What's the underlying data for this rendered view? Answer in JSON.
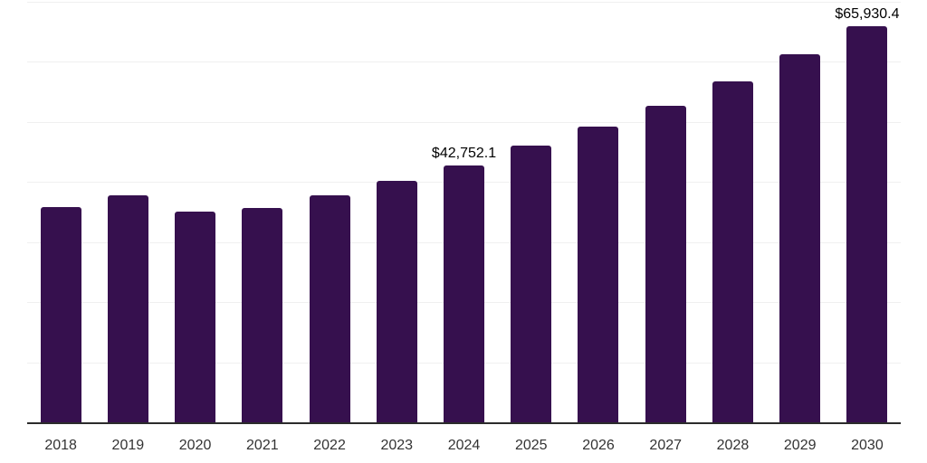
{
  "chart_data": {
    "type": "bar",
    "title": "",
    "xlabel": "",
    "ylabel": "",
    "categories": [
      "2018",
      "2019",
      "2020",
      "2021",
      "2022",
      "2023",
      "2024",
      "2025",
      "2026",
      "2027",
      "2028",
      "2029",
      "2030"
    ],
    "values": [
      35800,
      37800,
      35100,
      35700,
      37800,
      40200,
      42752.1,
      46000,
      49200,
      52700,
      56800,
      61300,
      65930.4
    ],
    "data_labels": [
      {
        "category": "2024",
        "text": "$42,752.1"
      },
      {
        "category": "2030",
        "text": "$65,930.4"
      }
    ],
    "ylim": [
      0,
      70000
    ],
    "gridline_values": [
      10000,
      20000,
      30000,
      40000,
      50000,
      60000,
      70000
    ],
    "grid": true,
    "legend": false,
    "y_axis_labels_shown": false
  },
  "style": {
    "bar_color": "#36104e",
    "axis_color": "#2b2b2b",
    "grid_color": "#f0f0f0",
    "label_color": "#000000",
    "tick_color": "#333333",
    "background_color": "#ffffff"
  }
}
